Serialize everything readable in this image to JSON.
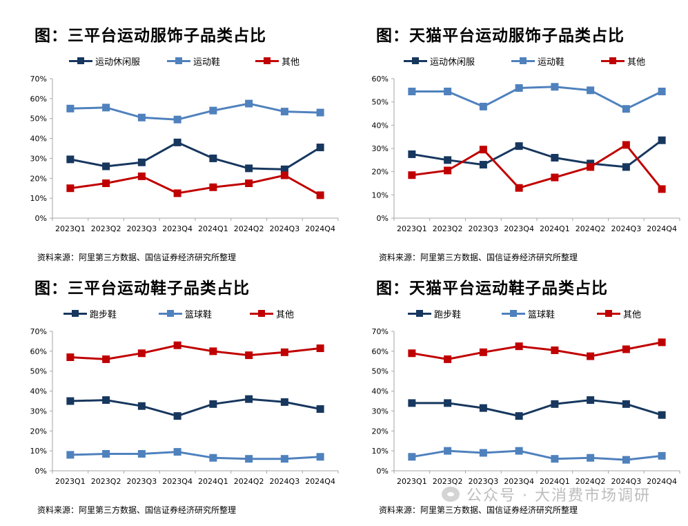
{
  "colors": {
    "series1": "#17375E",
    "series2": "#4F81BD",
    "series3": "#C00000",
    "axis": "#a6a6a6"
  },
  "watermark": "公众号 · 大消费市场调研",
  "chart_data": [
    {
      "type": "line",
      "title": "图：三平台运动服饰子品类占比",
      "categories": [
        "2023Q1",
        "2023Q2",
        "2023Q3",
        "2023Q4",
        "2024Q1",
        "2024Q2",
        "2024Q3",
        "2024Q4"
      ],
      "ylim": [
        0,
        70
      ],
      "yticks": [
        0,
        10,
        20,
        30,
        40,
        50,
        60,
        70
      ],
      "ytick_labels": [
        "0%",
        "10%",
        "20%",
        "30%",
        "40%",
        "50%",
        "60%",
        "70%"
      ],
      "series": [
        {
          "name": "运动休闲服",
          "values": [
            29.5,
            26,
            28,
            38,
            30,
            25,
            24.5,
            35.5
          ]
        },
        {
          "name": "运动鞋",
          "values": [
            55,
            55.5,
            50.5,
            49.5,
            54,
            57.5,
            53.5,
            53
          ]
        },
        {
          "name": "其他",
          "values": [
            15,
            17.5,
            21,
            12.5,
            15.5,
            17.5,
            21.5,
            11.5
          ]
        }
      ],
      "source": "资料来源：阿里第三方数据、国信证券经济研究所整理"
    },
    {
      "type": "line",
      "title": "图：天猫平台运动服饰子品类占比",
      "categories": [
        "2023Q1",
        "2023Q2",
        "2023Q3",
        "2023Q4",
        "2024Q1",
        "2024Q2",
        "2024Q3",
        "2024Q4"
      ],
      "ylim": [
        0,
        60
      ],
      "yticks": [
        0,
        10,
        20,
        30,
        40,
        50,
        60
      ],
      "ytick_labels": [
        "0%",
        "10%",
        "20%",
        "30%",
        "40%",
        "50%",
        "60%"
      ],
      "series": [
        {
          "name": "运动休闲服",
          "values": [
            27.5,
            25,
            23,
            31,
            26,
            23.5,
            22,
            33.5
          ]
        },
        {
          "name": "运动鞋",
          "values": [
            54.5,
            54.5,
            48,
            56,
            56.5,
            55,
            47,
            54.5
          ]
        },
        {
          "name": "其他",
          "values": [
            18.5,
            20.5,
            29.5,
            13,
            17.5,
            22,
            31.5,
            12.5
          ]
        }
      ],
      "source": "资料来源：阿里第三方数据、国信证券经济研究所整理"
    },
    {
      "type": "line",
      "title": "图：三平台运动鞋子品类占比",
      "categories": [
        "2023Q1",
        "2023Q2",
        "2023Q3",
        "2023Q4",
        "2024Q1",
        "2024Q2",
        "2024Q3",
        "2024Q4"
      ],
      "ylim": [
        0,
        70
      ],
      "yticks": [
        0,
        10,
        20,
        30,
        40,
        50,
        60,
        70
      ],
      "ytick_labels": [
        "0%",
        "10%",
        "20%",
        "30%",
        "40%",
        "50%",
        "60%",
        "70%"
      ],
      "series": [
        {
          "name": "跑步鞋",
          "values": [
            35,
            35.5,
            32.5,
            27.5,
            33.5,
            36,
            34.5,
            31
          ]
        },
        {
          "name": "篮球鞋",
          "values": [
            8,
            8.5,
            8.5,
            9.5,
            6.5,
            6,
            6,
            7
          ]
        },
        {
          "name": "其他",
          "values": [
            57,
            56,
            59,
            63,
            60,
            58,
            59.5,
            61.5
          ]
        }
      ],
      "source": "资料来源：阿里第三方数据、国信证券经济研究所整理"
    },
    {
      "type": "line",
      "title": "图：天猫平台运动鞋子品类占比",
      "categories": [
        "2023Q1",
        "2023Q2",
        "2023Q3",
        "2023Q4",
        "2024Q1",
        "2024Q2",
        "2024Q3",
        "2024Q4"
      ],
      "ylim": [
        0,
        70
      ],
      "yticks": [
        0,
        10,
        20,
        30,
        40,
        50,
        60,
        70
      ],
      "ytick_labels": [
        "0%",
        "10%",
        "20%",
        "30%",
        "40%",
        "50%",
        "60%",
        "70%"
      ],
      "series": [
        {
          "name": "跑步鞋",
          "values": [
            34,
            34,
            31.5,
            27.5,
            33.5,
            35.5,
            33.5,
            28
          ]
        },
        {
          "name": "篮球鞋",
          "values": [
            7,
            10,
            9,
            10,
            6,
            6.5,
            5.5,
            7.5
          ]
        },
        {
          "name": "其他",
          "values": [
            59,
            56,
            59.5,
            62.5,
            60.5,
            57.5,
            61,
            64.5
          ]
        }
      ],
      "source": "资料来源：阿里第三方数据、国信证券经济研究所整理"
    }
  ]
}
